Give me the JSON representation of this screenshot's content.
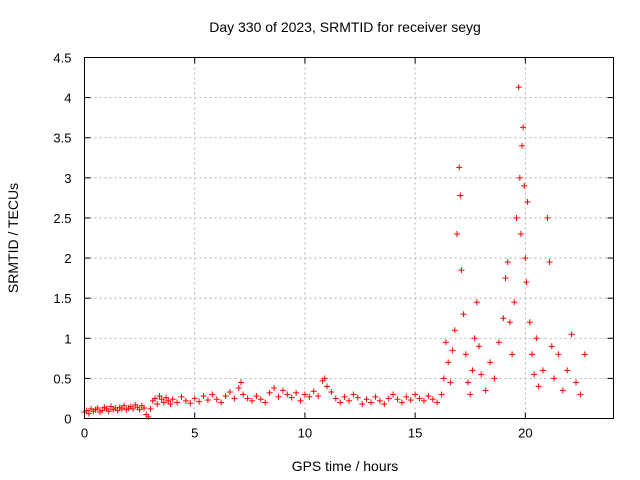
{
  "chart_data": {
    "type": "scatter",
    "title": "Day 330 of 2023, SRMTID for receiver seyg",
    "xlabel": "GPS time / hours",
    "ylabel": "SRMTID / TECUs",
    "xlim": [
      0,
      24
    ],
    "ylim": [
      0,
      4.5
    ],
    "xticks": [
      0,
      5,
      10,
      15,
      20
    ],
    "yticks": [
      0,
      0.5,
      1,
      1.5,
      2,
      2.5,
      3,
      3.5,
      4,
      4.5
    ],
    "xtick_labels": [
      "0",
      "5",
      "10",
      "15",
      "20"
    ],
    "ytick_labels": [
      "0",
      "0.5",
      "1",
      "1.5",
      "2",
      "2.5",
      "3",
      "3.5",
      "4",
      "4.5"
    ],
    "grid": true,
    "marker": "+",
    "color": "#ff0000",
    "series": [
      {
        "name": "seyg",
        "points": [
          [
            0.0,
            0.08
          ],
          [
            0.1,
            0.1
          ],
          [
            0.2,
            0.06
          ],
          [
            0.3,
            0.12
          ],
          [
            0.4,
            0.09
          ],
          [
            0.5,
            0.11
          ],
          [
            0.6,
            0.13
          ],
          [
            0.7,
            0.08
          ],
          [
            0.8,
            0.1
          ],
          [
            0.9,
            0.14
          ],
          [
            1.0,
            0.12
          ],
          [
            1.1,
            0.09
          ],
          [
            1.2,
            0.15
          ],
          [
            1.3,
            0.11
          ],
          [
            1.4,
            0.13
          ],
          [
            1.5,
            0.1
          ],
          [
            1.6,
            0.14
          ],
          [
            1.7,
            0.12
          ],
          [
            1.8,
            0.16
          ],
          [
            1.9,
            0.11
          ],
          [
            2.0,
            0.13
          ],
          [
            2.1,
            0.15
          ],
          [
            2.2,
            0.12
          ],
          [
            2.3,
            0.17
          ],
          [
            2.4,
            0.14
          ],
          [
            2.5,
            0.11
          ],
          [
            2.6,
            0.16
          ],
          [
            2.7,
            0.13
          ],
          [
            2.8,
            0.05
          ],
          [
            2.9,
            0.02
          ],
          [
            3.0,
            0.12
          ],
          [
            3.1,
            0.22
          ],
          [
            3.2,
            0.25
          ],
          [
            3.3,
            0.18
          ],
          [
            3.4,
            0.28
          ],
          [
            3.5,
            0.24
          ],
          [
            3.6,
            0.2
          ],
          [
            3.7,
            0.26
          ],
          [
            3.8,
            0.22
          ],
          [
            3.9,
            0.18
          ],
          [
            4.0,
            0.24
          ],
          [
            4.2,
            0.2
          ],
          [
            4.4,
            0.27
          ],
          [
            4.6,
            0.22
          ],
          [
            4.8,
            0.19
          ],
          [
            5.0,
            0.25
          ],
          [
            5.2,
            0.21
          ],
          [
            5.4,
            0.28
          ],
          [
            5.6,
            0.23
          ],
          [
            5.8,
            0.3
          ],
          [
            6.0,
            0.24
          ],
          [
            6.2,
            0.2
          ],
          [
            6.4,
            0.28
          ],
          [
            6.6,
            0.33
          ],
          [
            6.8,
            0.25
          ],
          [
            7.0,
            0.38
          ],
          [
            7.1,
            0.45
          ],
          [
            7.2,
            0.3
          ],
          [
            7.4,
            0.25
          ],
          [
            7.6,
            0.22
          ],
          [
            7.8,
            0.28
          ],
          [
            8.0,
            0.24
          ],
          [
            8.2,
            0.2
          ],
          [
            8.4,
            0.32
          ],
          [
            8.6,
            0.38
          ],
          [
            8.8,
            0.27
          ],
          [
            9.0,
            0.35
          ],
          [
            9.2,
            0.3
          ],
          [
            9.4,
            0.26
          ],
          [
            9.6,
            0.32
          ],
          [
            9.8,
            0.22
          ],
          [
            10.0,
            0.3
          ],
          [
            10.2,
            0.27
          ],
          [
            10.4,
            0.34
          ],
          [
            10.6,
            0.28
          ],
          [
            10.8,
            0.47
          ],
          [
            10.9,
            0.5
          ],
          [
            11.0,
            0.4
          ],
          [
            11.2,
            0.33
          ],
          [
            11.4,
            0.25
          ],
          [
            11.6,
            0.2
          ],
          [
            11.8,
            0.27
          ],
          [
            12.0,
            0.22
          ],
          [
            12.2,
            0.3
          ],
          [
            12.4,
            0.26
          ],
          [
            12.6,
            0.18
          ],
          [
            12.8,
            0.24
          ],
          [
            13.0,
            0.2
          ],
          [
            13.2,
            0.27
          ],
          [
            13.4,
            0.22
          ],
          [
            13.6,
            0.18
          ],
          [
            13.8,
            0.25
          ],
          [
            14.0,
            0.3
          ],
          [
            14.2,
            0.24
          ],
          [
            14.4,
            0.2
          ],
          [
            14.6,
            0.27
          ],
          [
            14.8,
            0.23
          ],
          [
            15.0,
            0.3
          ],
          [
            15.2,
            0.25
          ],
          [
            15.4,
            0.22
          ],
          [
            15.6,
            0.28
          ],
          [
            15.8,
            0.24
          ],
          [
            16.0,
            0.2
          ],
          [
            16.2,
            0.3
          ],
          [
            16.3,
            0.5
          ],
          [
            16.4,
            0.95
          ],
          [
            16.5,
            0.7
          ],
          [
            16.6,
            0.45
          ],
          [
            16.7,
            0.85
          ],
          [
            16.8,
            1.1
          ],
          [
            16.9,
            2.3
          ],
          [
            17.0,
            3.13
          ],
          [
            17.05,
            2.78
          ],
          [
            17.1,
            1.85
          ],
          [
            17.2,
            1.3
          ],
          [
            17.3,
            0.8
          ],
          [
            17.4,
            0.45
          ],
          [
            17.5,
            0.3
          ],
          [
            17.6,
            0.6
          ],
          [
            17.7,
            1.0
          ],
          [
            17.8,
            1.45
          ],
          [
            17.9,
            0.9
          ],
          [
            18.0,
            0.55
          ],
          [
            18.2,
            0.35
          ],
          [
            18.4,
            0.7
          ],
          [
            18.6,
            0.5
          ],
          [
            18.8,
            0.95
          ],
          [
            19.0,
            1.25
          ],
          [
            19.1,
            1.75
          ],
          [
            19.2,
            1.95
          ],
          [
            19.3,
            1.2
          ],
          [
            19.4,
            0.8
          ],
          [
            19.5,
            1.45
          ],
          [
            19.6,
            2.5
          ],
          [
            19.7,
            4.13
          ],
          [
            19.75,
            3.0
          ],
          [
            19.8,
            2.3
          ],
          [
            19.85,
            3.4
          ],
          [
            19.9,
            3.63
          ],
          [
            19.95,
            2.9
          ],
          [
            20.0,
            2.0
          ],
          [
            20.05,
            1.7
          ],
          [
            20.1,
            2.7
          ],
          [
            20.2,
            1.2
          ],
          [
            20.3,
            0.8
          ],
          [
            20.4,
            0.55
          ],
          [
            20.5,
            1.0
          ],
          [
            20.6,
            0.4
          ],
          [
            20.8,
            0.6
          ],
          [
            21.0,
            2.5
          ],
          [
            21.1,
            1.95
          ],
          [
            21.2,
            0.9
          ],
          [
            21.3,
            0.5
          ],
          [
            21.5,
            0.8
          ],
          [
            21.7,
            0.35
          ],
          [
            21.9,
            0.6
          ],
          [
            22.1,
            1.05
          ],
          [
            22.3,
            0.45
          ],
          [
            22.5,
            0.3
          ],
          [
            22.7,
            0.8
          ]
        ]
      }
    ]
  }
}
